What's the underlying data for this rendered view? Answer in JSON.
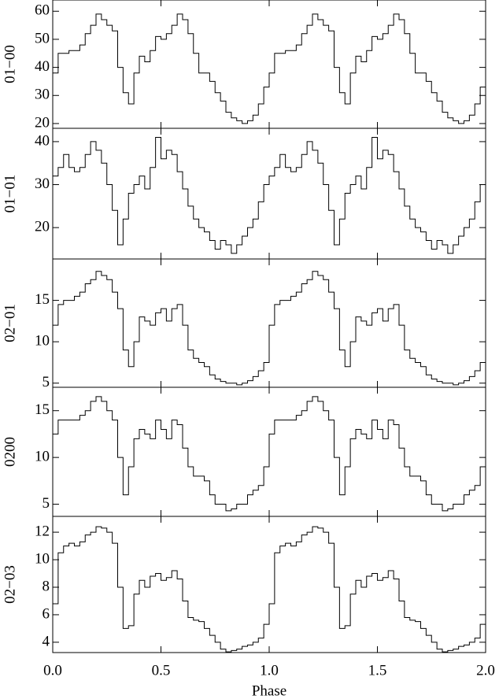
{
  "chart_data": [
    {
      "type": "step",
      "ylabel": "01−00",
      "color": "#000000",
      "xlim": [
        0,
        2
      ],
      "ylim": [
        18.3,
        64
      ],
      "yticks": [
        20,
        30,
        40,
        50,
        60
      ],
      "x": [
        0,
        0.025,
        0.05,
        0.075,
        0.1,
        0.125,
        0.15,
        0.175,
        0.2,
        0.225,
        0.25,
        0.275,
        0.3,
        0.325,
        0.35,
        0.375,
        0.4,
        0.425,
        0.45,
        0.475,
        0.5,
        0.525,
        0.55,
        0.575,
        0.6,
        0.625,
        0.65,
        0.675,
        0.7,
        0.725,
        0.75,
        0.775,
        0.8,
        0.825,
        0.85,
        0.875,
        0.9,
        0.925,
        0.95,
        0.975,
        1,
        1.025,
        1.05,
        1.075,
        1.1,
        1.125,
        1.15,
        1.175,
        1.2,
        1.225,
        1.25,
        1.275,
        1.3,
        1.325,
        1.35,
        1.375,
        1.4,
        1.425,
        1.45,
        1.475,
        1.5,
        1.525,
        1.55,
        1.575,
        1.6,
        1.625,
        1.65,
        1.675,
        1.7,
        1.725,
        1.75,
        1.775,
        1.8,
        1.825,
        1.85,
        1.875,
        1.9,
        1.925,
        1.95,
        1.975
      ],
      "values": [
        38,
        45,
        45,
        46,
        46,
        48,
        52,
        55,
        59,
        57,
        55,
        53,
        40,
        31,
        27,
        38,
        44,
        42,
        46,
        51,
        50,
        52,
        55,
        59,
        57,
        52,
        45,
        38,
        38,
        35,
        31,
        28,
        24,
        22,
        21,
        20,
        21,
        23,
        27,
        33,
        38,
        45,
        45,
        46,
        46,
        48,
        52,
        55,
        59,
        57,
        55,
        53,
        40,
        31,
        27,
        38,
        44,
        42,
        46,
        51,
        50,
        52,
        55,
        59,
        57,
        52,
        45,
        38,
        38,
        35,
        31,
        28,
        24,
        22,
        21,
        20,
        21,
        23,
        27,
        33
      ]
    },
    {
      "type": "step",
      "ylabel": "01−01",
      "color": "#000000",
      "xlim": [
        0,
        2
      ],
      "ylim": [
        12.7,
        43.1
      ],
      "yticks": [
        20,
        30,
        40
      ],
      "x": [
        0,
        0.025,
        0.05,
        0.075,
        0.1,
        0.125,
        0.15,
        0.175,
        0.2,
        0.225,
        0.25,
        0.275,
        0.3,
        0.325,
        0.35,
        0.375,
        0.4,
        0.425,
        0.45,
        0.475,
        0.5,
        0.525,
        0.55,
        0.575,
        0.6,
        0.625,
        0.65,
        0.675,
        0.7,
        0.725,
        0.75,
        0.775,
        0.8,
        0.825,
        0.85,
        0.875,
        0.9,
        0.925,
        0.95,
        0.975,
        1,
        1.025,
        1.05,
        1.075,
        1.1,
        1.125,
        1.15,
        1.175,
        1.2,
        1.225,
        1.25,
        1.275,
        1.3,
        1.325,
        1.35,
        1.375,
        1.4,
        1.425,
        1.45,
        1.475,
        1.5,
        1.525,
        1.55,
        1.575,
        1.6,
        1.625,
        1.65,
        1.675,
        1.7,
        1.725,
        1.75,
        1.775,
        1.8,
        1.825,
        1.85,
        1.875,
        1.9,
        1.925,
        1.95,
        1.975
      ],
      "values": [
        32,
        34,
        37,
        34,
        33,
        34,
        37,
        40,
        38,
        35,
        30,
        24,
        16,
        22,
        28,
        30,
        32,
        29,
        34,
        41,
        36,
        38,
        37,
        33,
        29,
        25,
        22,
        20,
        19,
        17,
        15,
        17,
        16,
        14,
        16,
        18,
        20,
        22,
        26,
        30,
        32,
        34,
        37,
        34,
        33,
        34,
        37,
        40,
        38,
        35,
        30,
        24,
        16,
        22,
        28,
        30,
        32,
        29,
        34,
        41,
        36,
        38,
        37,
        33,
        29,
        25,
        22,
        20,
        19,
        17,
        15,
        17,
        16,
        14,
        16,
        18,
        20,
        22,
        26,
        30
      ]
    },
    {
      "type": "step",
      "ylabel": "02−01",
      "color": "#000000",
      "xlim": [
        0,
        2
      ],
      "ylim": [
        4.5,
        20
      ],
      "yticks": [
        5,
        10,
        15
      ],
      "x": [
        0,
        0.025,
        0.05,
        0.075,
        0.1,
        0.125,
        0.15,
        0.175,
        0.2,
        0.225,
        0.25,
        0.275,
        0.3,
        0.325,
        0.35,
        0.375,
        0.4,
        0.425,
        0.45,
        0.475,
        0.5,
        0.525,
        0.55,
        0.575,
        0.6,
        0.625,
        0.65,
        0.675,
        0.7,
        0.725,
        0.75,
        0.775,
        0.8,
        0.825,
        0.85,
        0.875,
        0.9,
        0.925,
        0.95,
        0.975,
        1,
        1.025,
        1.05,
        1.075,
        1.1,
        1.125,
        1.15,
        1.175,
        1.2,
        1.225,
        1.25,
        1.275,
        1.3,
        1.325,
        1.35,
        1.375,
        1.4,
        1.425,
        1.45,
        1.475,
        1.5,
        1.525,
        1.55,
        1.575,
        1.6,
        1.625,
        1.65,
        1.675,
        1.7,
        1.725,
        1.75,
        1.775,
        1.8,
        1.825,
        1.85,
        1.875,
        1.9,
        1.925,
        1.95,
        1.975
      ],
      "values": [
        12,
        14.5,
        15,
        15,
        15.5,
        16,
        17,
        17.5,
        18.5,
        18,
        17.5,
        16,
        14,
        9,
        7,
        10,
        13,
        12.5,
        12,
        13.5,
        14,
        12.5,
        14,
        14.5,
        12,
        9,
        8,
        7.5,
        7,
        6,
        5.5,
        5.2,
        5,
        5,
        4.8,
        5,
        5.3,
        5.8,
        6.5,
        7.5,
        12,
        14.5,
        15,
        15,
        15.5,
        16,
        17,
        17.5,
        18.5,
        18,
        17.5,
        16,
        14,
        9,
        7,
        10,
        13,
        12.5,
        12,
        13.5,
        14,
        12.5,
        14,
        14.5,
        12,
        9,
        8,
        7.5,
        7,
        6,
        5.5,
        5.2,
        5,
        5,
        4.8,
        5,
        5.3,
        5.8,
        6.5,
        7.5
      ]
    },
    {
      "type": "step",
      "ylabel": "0200",
      "color": "#000000",
      "xlim": [
        0,
        2
      ],
      "ylim": [
        3.7,
        17.5
      ],
      "yticks": [
        5,
        10,
        15
      ],
      "x": [
        0,
        0.025,
        0.05,
        0.075,
        0.1,
        0.125,
        0.15,
        0.175,
        0.2,
        0.225,
        0.25,
        0.275,
        0.3,
        0.325,
        0.35,
        0.375,
        0.4,
        0.425,
        0.45,
        0.475,
        0.5,
        0.525,
        0.55,
        0.575,
        0.6,
        0.625,
        0.65,
        0.675,
        0.7,
        0.725,
        0.75,
        0.775,
        0.8,
        0.825,
        0.85,
        0.875,
        0.9,
        0.925,
        0.95,
        0.975,
        1,
        1.025,
        1.05,
        1.075,
        1.1,
        1.125,
        1.15,
        1.175,
        1.2,
        1.225,
        1.25,
        1.275,
        1.3,
        1.325,
        1.35,
        1.375,
        1.4,
        1.425,
        1.45,
        1.475,
        1.5,
        1.525,
        1.55,
        1.575,
        1.6,
        1.625,
        1.65,
        1.675,
        1.7,
        1.725,
        1.75,
        1.775,
        1.8,
        1.825,
        1.85,
        1.875,
        1.9,
        1.925,
        1.95,
        1.975
      ],
      "values": [
        12.5,
        14,
        14,
        14,
        14,
        14.5,
        15,
        16,
        16.5,
        16,
        15,
        14,
        10,
        6,
        9,
        12,
        13,
        12.5,
        12,
        14,
        13,
        12,
        14,
        13.5,
        11,
        9,
        8,
        8,
        7.5,
        6,
        5,
        5,
        4.3,
        4.5,
        5,
        5,
        6,
        6.5,
        7,
        9,
        12.5,
        14,
        14,
        14,
        14,
        14.5,
        15,
        16,
        16.5,
        16,
        15,
        14,
        10,
        6,
        9,
        12,
        13,
        12.5,
        12,
        14,
        13,
        12,
        14,
        13.5,
        11,
        9,
        8,
        8,
        7.5,
        6,
        5,
        5,
        4.3,
        4.5,
        5,
        5,
        6,
        6.5,
        7,
        9
      ]
    },
    {
      "type": "step",
      "ylabel": "02−03",
      "xlabel": "Phase",
      "color": "#000000",
      "xlim": [
        0,
        2
      ],
      "ylim": [
        3.25,
        13.15
      ],
      "yticks": [
        4,
        6,
        8,
        10,
        12
      ],
      "xticks": [
        {
          "value": 0,
          "label": "0.0"
        },
        {
          "value": 0.5,
          "label": "0.5"
        },
        {
          "value": 1,
          "label": "1.0"
        },
        {
          "value": 1.5,
          "label": "1.5"
        },
        {
          "value": 2,
          "label": "2.0"
        }
      ],
      "x": [
        0,
        0.025,
        0.05,
        0.075,
        0.1,
        0.125,
        0.15,
        0.175,
        0.2,
        0.225,
        0.25,
        0.275,
        0.3,
        0.325,
        0.35,
        0.375,
        0.4,
        0.425,
        0.45,
        0.475,
        0.5,
        0.525,
        0.55,
        0.575,
        0.6,
        0.625,
        0.65,
        0.675,
        0.7,
        0.725,
        0.75,
        0.775,
        0.8,
        0.825,
        0.85,
        0.875,
        0.9,
        0.925,
        0.95,
        0.975,
        1,
        1.025,
        1.05,
        1.075,
        1.1,
        1.125,
        1.15,
        1.175,
        1.2,
        1.225,
        1.25,
        1.275,
        1.3,
        1.325,
        1.35,
        1.375,
        1.4,
        1.425,
        1.45,
        1.475,
        1.5,
        1.525,
        1.55,
        1.575,
        1.6,
        1.625,
        1.65,
        1.675,
        1.7,
        1.725,
        1.75,
        1.775,
        1.8,
        1.825,
        1.85,
        1.875,
        1.9,
        1.925,
        1.95,
        1.975
      ],
      "values": [
        6.8,
        10.5,
        11,
        11.2,
        11,
        11.3,
        11.8,
        12,
        12.4,
        12.3,
        12,
        11.2,
        8,
        5,
        5.2,
        7.5,
        8.5,
        8,
        8.8,
        9,
        8.5,
        8.7,
        9.2,
        8.6,
        7,
        5.8,
        5.6,
        5.5,
        5,
        4.5,
        4,
        3.5,
        3.3,
        3.4,
        3.5,
        3.7,
        3.8,
        4,
        4.3,
        5.3,
        6.8,
        10.5,
        11,
        11.2,
        11,
        11.3,
        11.8,
        12,
        12.4,
        12.3,
        12,
        11.2,
        8,
        5,
        5.2,
        7.5,
        8.5,
        8,
        8.8,
        9,
        8.5,
        8.7,
        9.2,
        8.6,
        7,
        5.8,
        5.6,
        5.5,
        5,
        4.5,
        4,
        3.5,
        3.3,
        3.4,
        3.5,
        3.7,
        3.8,
        4,
        4.3,
        5.3
      ]
    }
  ]
}
